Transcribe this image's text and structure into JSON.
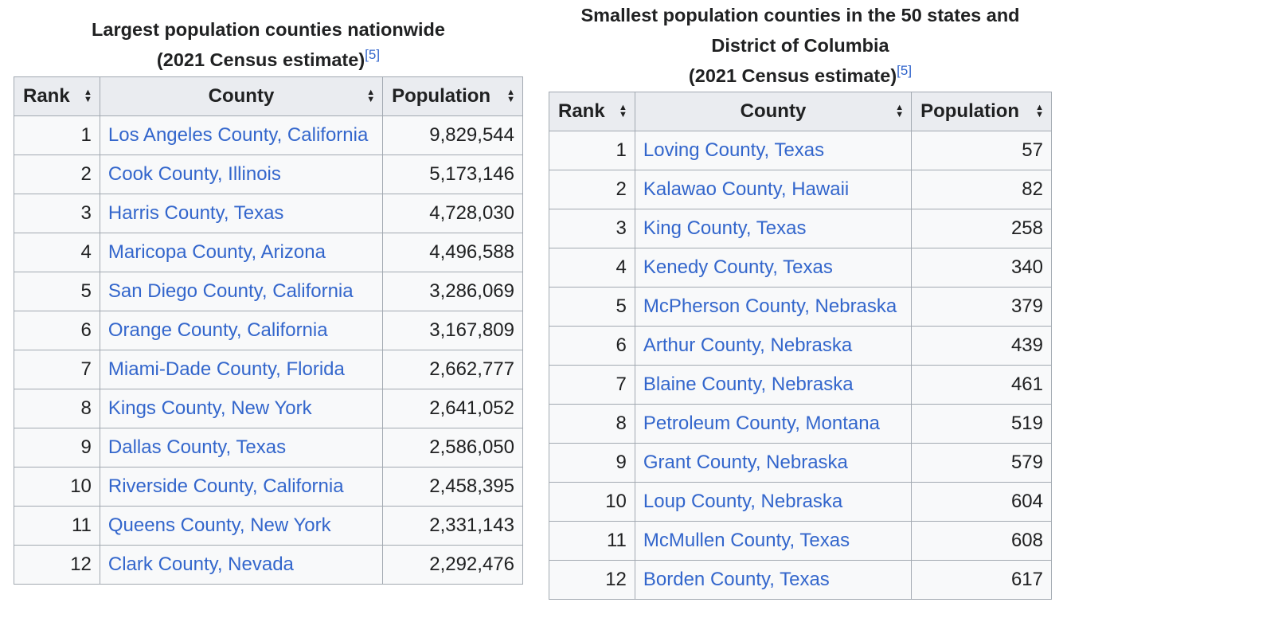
{
  "largest": {
    "caption_line1": "Largest population counties nationwide",
    "caption_line2": "(2021 Census estimate)",
    "ref": "[5]",
    "headers": {
      "rank": "Rank",
      "county": "County",
      "population": "Population"
    },
    "rows": [
      {
        "rank": "1",
        "county": "Los Angeles County, California",
        "population": "9,829,544"
      },
      {
        "rank": "2",
        "county": "Cook County, Illinois",
        "population": "5,173,146"
      },
      {
        "rank": "3",
        "county": "Harris County, Texas",
        "population": "4,728,030"
      },
      {
        "rank": "4",
        "county": "Maricopa County, Arizona",
        "population": "4,496,588"
      },
      {
        "rank": "5",
        "county": "San Diego County, California",
        "population": "3,286,069"
      },
      {
        "rank": "6",
        "county": "Orange County, California",
        "population": "3,167,809"
      },
      {
        "rank": "7",
        "county": "Miami-Dade County, Florida",
        "population": "2,662,777"
      },
      {
        "rank": "8",
        "county": "Kings County, New York",
        "population": "2,641,052"
      },
      {
        "rank": "9",
        "county": "Dallas County, Texas",
        "population": "2,586,050"
      },
      {
        "rank": "10",
        "county": "Riverside County, California",
        "population": "2,458,395"
      },
      {
        "rank": "11",
        "county": "Queens County, New York",
        "population": "2,331,143"
      },
      {
        "rank": "12",
        "county": "Clark County, Nevada",
        "population": "2,292,476"
      }
    ]
  },
  "smallest": {
    "caption_line1": "Smallest population counties in the 50 states and",
    "caption_line2": "District of Columbia",
    "caption_line3": "(2021 Census estimate)",
    "ref": "[5]",
    "headers": {
      "rank": "Rank",
      "county": "County",
      "population": "Population"
    },
    "rows": [
      {
        "rank": "1",
        "county": "Loving County, Texas",
        "population": "57"
      },
      {
        "rank": "2",
        "county": "Kalawao County, Hawaii",
        "population": "82"
      },
      {
        "rank": "3",
        "county": "King County, Texas",
        "population": "258"
      },
      {
        "rank": "4",
        "county": "Kenedy County, Texas",
        "population": "340"
      },
      {
        "rank": "5",
        "county": "McPherson County, Nebraska",
        "population": "379"
      },
      {
        "rank": "6",
        "county": "Arthur County, Nebraska",
        "population": "439"
      },
      {
        "rank": "7",
        "county": "Blaine County, Nebraska",
        "population": "461"
      },
      {
        "rank": "8",
        "county": "Petroleum County, Montana",
        "population": "519"
      },
      {
        "rank": "9",
        "county": "Grant County, Nebraska",
        "population": "579"
      },
      {
        "rank": "10",
        "county": "Loup County, Nebraska",
        "population": "604"
      },
      {
        "rank": "11",
        "county": "McMullen County, Texas",
        "population": "608"
      },
      {
        "rank": "12",
        "county": "Borden County, Texas",
        "population": "617"
      }
    ]
  }
}
